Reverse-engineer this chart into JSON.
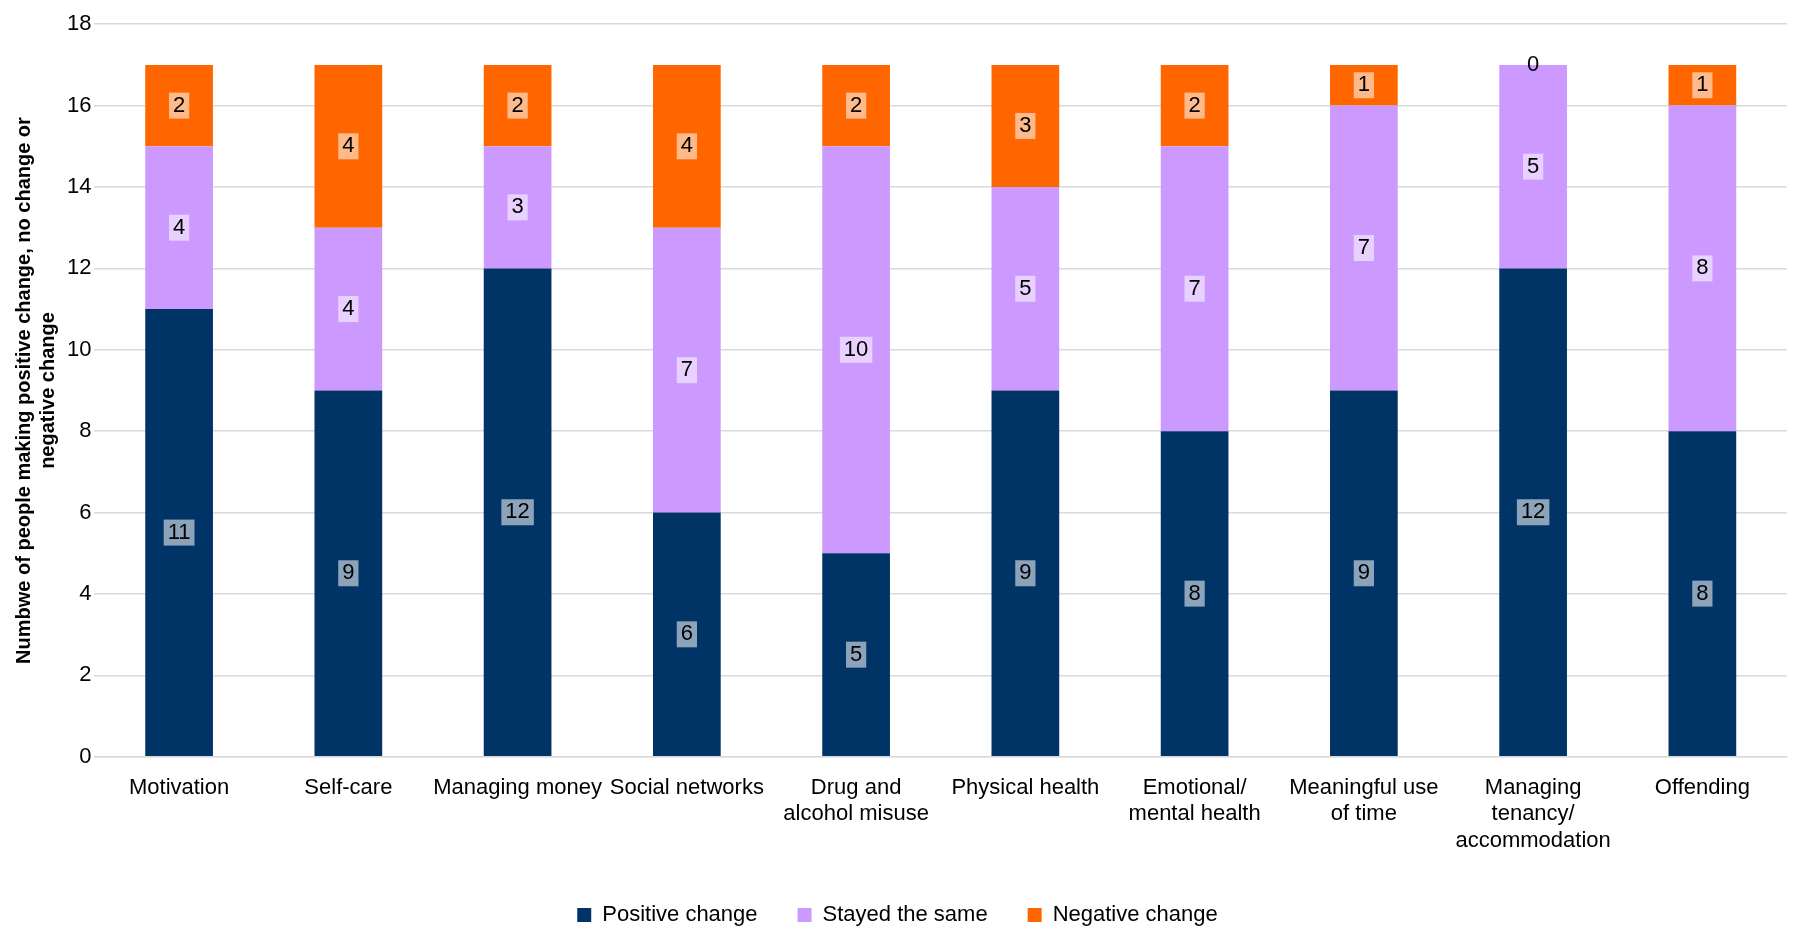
{
  "chart_data": {
    "type": "bar",
    "stacked": true,
    "ylabel": "Numbwe of people making positive change, no change or negative change",
    "categories": [
      "Motivation",
      "Self-care",
      "Managing money",
      "Social networks",
      "Drug and alcohol misuse",
      "Physical health",
      "Emotional/ mental health",
      "Meaningful use of time",
      "Managing tenancy/ accommodation",
      "Offending"
    ],
    "series": [
      {
        "name": "Positive change",
        "color": "#003366",
        "values": [
          11,
          9,
          12,
          6,
          5,
          9,
          8,
          9,
          12,
          8
        ]
      },
      {
        "name": "Stayed the same",
        "color": "#cc99ff",
        "values": [
          4,
          4,
          3,
          7,
          10,
          5,
          7,
          7,
          5,
          8
        ]
      },
      {
        "name": "Negative change",
        "color": "#ff6600",
        "values": [
          2,
          4,
          2,
          4,
          2,
          3,
          2,
          1,
          0,
          1
        ]
      }
    ],
    "ylim": [
      0,
      18
    ],
    "yticks": [
      0,
      2,
      4,
      6,
      8,
      10,
      12,
      14,
      16,
      18
    ],
    "grid": "y",
    "legend": "bottom",
    "data_labels": true
  }
}
